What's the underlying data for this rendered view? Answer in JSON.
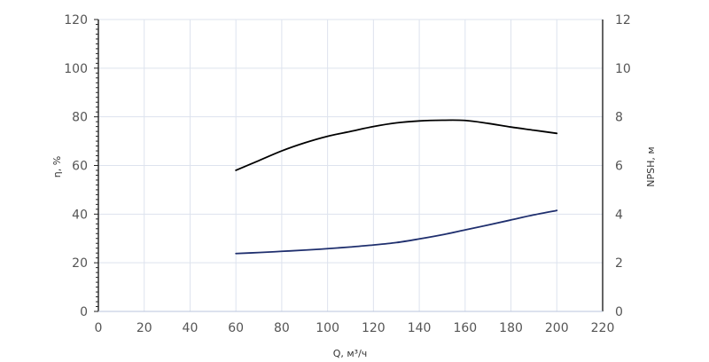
{
  "chart_data": {
    "type": "line",
    "xlabel": "Q, м³/ч",
    "ylabel_left": "η, %",
    "ylabel_right": "NPSH, м",
    "xlim": [
      0,
      220
    ],
    "ylim_left": [
      0,
      120
    ],
    "ylim_right": [
      0,
      12
    ],
    "x_ticks": [
      "0",
      "20",
      "40",
      "60",
      "80",
      "100",
      "120",
      "140",
      "160",
      "180",
      "200",
      "220"
    ],
    "y_left_ticks": [
      "0",
      "20",
      "40",
      "60",
      "80",
      "100",
      "120"
    ],
    "y_right_ticks": [
      "0",
      "2",
      "4",
      "6",
      "8",
      "10",
      "12"
    ],
    "grid": true,
    "colors": {
      "efficiency": "#000000",
      "npsh": "#1f2f6e",
      "grid": "#dde3ee",
      "axis": "#222222"
    },
    "series": [
      {
        "axis": "left",
        "x": [
          60,
          70,
          80,
          90,
          100,
          110,
          120,
          130,
          140,
          150,
          160,
          170,
          180,
          190,
          200
        ],
        "values": [
          58,
          62,
          66,
          69.3,
          72,
          74,
          76,
          77.5,
          78.3,
          78.6,
          78.5,
          77.3,
          75.8,
          74.5,
          73.2
        ]
      },
      {
        "axis": "right",
        "x": [
          60,
          70,
          80,
          90,
          100,
          110,
          120,
          130,
          140,
          150,
          160,
          170,
          180,
          190,
          200
        ],
        "values": [
          2.38,
          2.42,
          2.47,
          2.52,
          2.58,
          2.65,
          2.73,
          2.83,
          2.98,
          3.15,
          3.35,
          3.55,
          3.76,
          3.97,
          4.15
        ]
      }
    ]
  }
}
